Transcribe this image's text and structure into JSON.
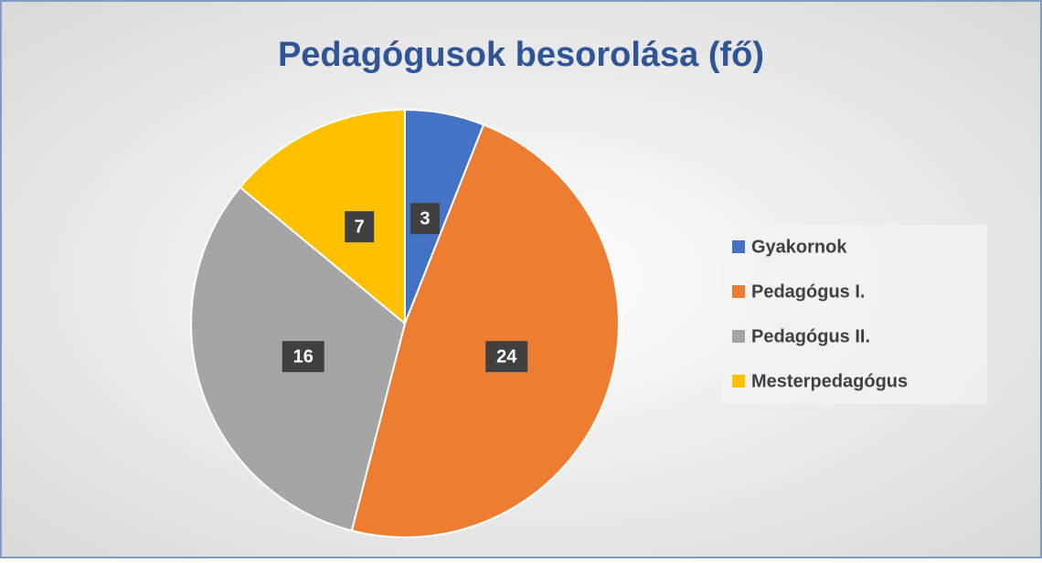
{
  "chart_data": {
    "type": "pie",
    "title": "Pedagógusok besorolása (fő)",
    "categories": [
      "Gyakornok",
      "Pedagógus I.",
      "Pedagógus II.",
      "Mesterpedagógus"
    ],
    "values": [
      3,
      24,
      16,
      7
    ],
    "colors": [
      "#4472c4",
      "#ed7d31",
      "#a5a5a5",
      "#ffc000"
    ],
    "legend": "right"
  }
}
